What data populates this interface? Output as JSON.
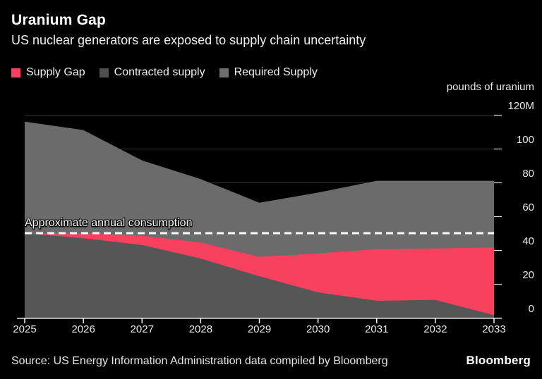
{
  "header": {
    "title": "Uranium Gap",
    "subtitle": "US nuclear generators are exposed to supply chain uncertainty"
  },
  "legend": {
    "items": [
      {
        "label": "Supply Gap",
        "color": "#f8415f"
      },
      {
        "label": "Contracted supply",
        "color": "#4f4f4f"
      },
      {
        "label": "Required Supply",
        "color": "#6f6f6f"
      }
    ]
  },
  "chart_data": {
    "type": "area",
    "title": "Uranium Gap",
    "x": [
      2025,
      2026,
      2027,
      2028,
      2029,
      2030,
      2031,
      2032,
      2033
    ],
    "series": [
      {
        "name": "Required Supply",
        "color": "#6b6b6b",
        "values": [
          116,
          111,
          93,
          82,
          68,
          74,
          81,
          81,
          81
        ]
      },
      {
        "name": "Supply Gap",
        "color": "#f8415f",
        "stacked_on": "Contracted supply",
        "values": [
          0,
          3,
          5.5,
          9.5,
          11.5,
          23,
          30.5,
          30.5,
          40
        ]
      },
      {
        "name": "Contracted supply",
        "color": "#565656",
        "values": [
          50,
          47,
          43,
          35,
          24.5,
          15,
          10,
          10.5,
          1.5
        ]
      }
    ],
    "annotation": {
      "label": "Approximate annual consumption",
      "value": 50
    },
    "y_axis": {
      "unit_label": "pounds of uranium",
      "ticks": [
        {
          "value": 120,
          "label": "120M"
        },
        {
          "value": 100,
          "label": "100"
        },
        {
          "value": 80,
          "label": "80"
        },
        {
          "value": 60,
          "label": "60"
        },
        {
          "value": 40,
          "label": "40"
        },
        {
          "value": 20,
          "label": "20"
        },
        {
          "value": 0,
          "label": "0"
        }
      ]
    },
    "ylim": [
      0,
      120
    ],
    "grid": true,
    "legend_position": "top",
    "colors": {
      "background": "#000000",
      "gridline": "#2e2e2e",
      "axis": "#f5f5f5",
      "dashed_line": "#ffffff"
    }
  },
  "footer": {
    "source": "Source: US Energy Information Administration data compiled by Bloomberg",
    "logo": "Bloomberg"
  }
}
